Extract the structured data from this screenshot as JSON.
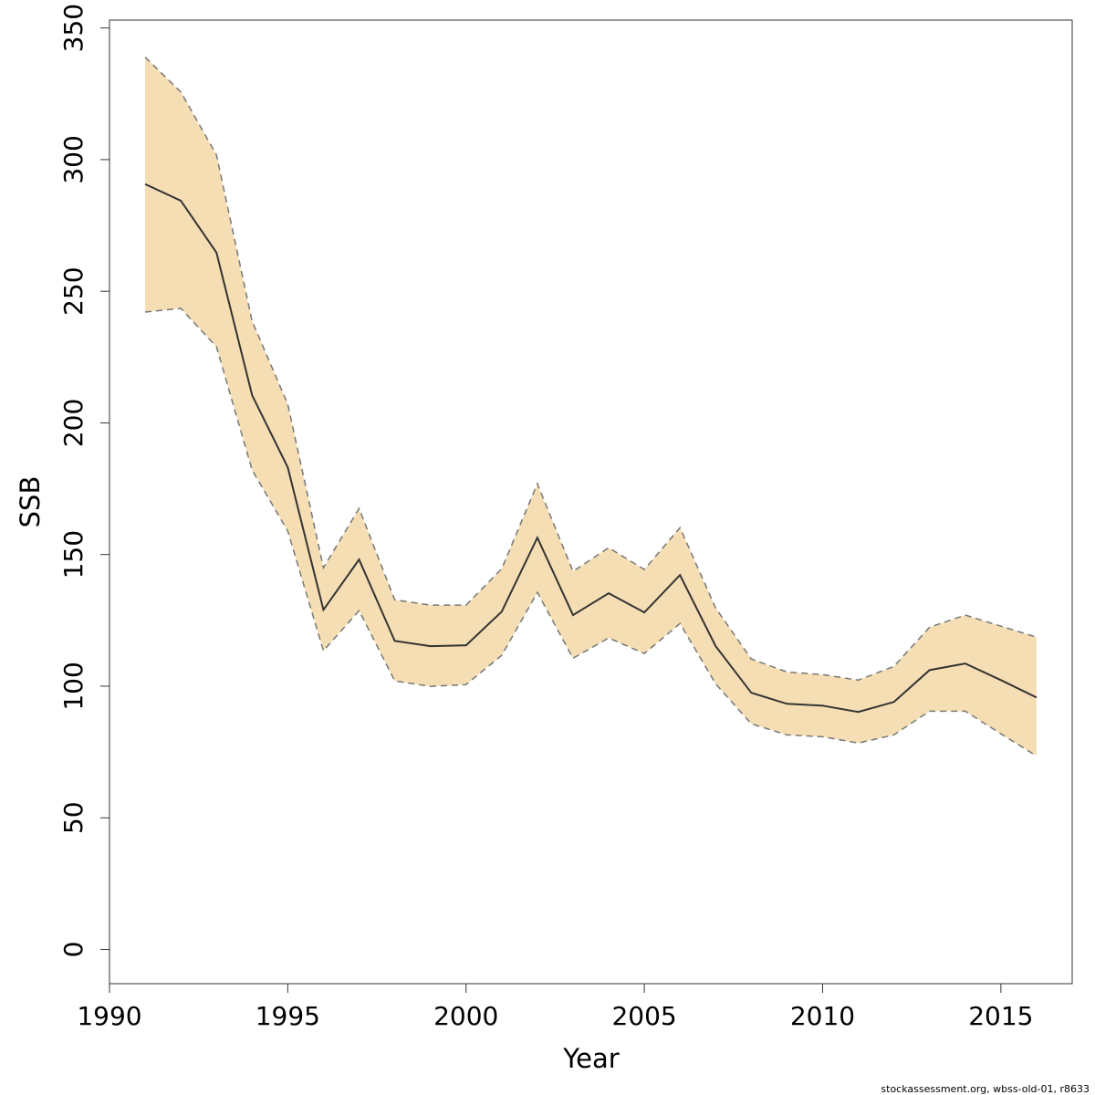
{
  "chart_data": {
    "type": "line",
    "xlabel": "Year",
    "ylabel": "SSB",
    "footer": "stockassessment.org, wbss-old-01, r8633",
    "x": [
      1991,
      1992,
      1993,
      1994,
      1995,
      1996,
      1997,
      1998,
      1999,
      2000,
      2001,
      2002,
      2003,
      2004,
      2005,
      2006,
      2007,
      2008,
      2009,
      2010,
      2011,
      2012,
      2013,
      2014,
      2015,
      2016
    ],
    "values": [
      290.7,
      284.4,
      264.7,
      210.5,
      183.1,
      129,
      148.1,
      117.2,
      115.2,
      115.5,
      128.3,
      156.4,
      127,
      135.3,
      128,
      142.2,
      115.2,
      97.5,
      93.3,
      92.6,
      90.2,
      94,
      106.1,
      108.6,
      102.3,
      95.7
    ],
    "upper": [
      338.9,
      325.7,
      301.8,
      238.6,
      207.1,
      145,
      167.5,
      132.8,
      130.8,
      130.8,
      144.6,
      176.9,
      143.6,
      152.6,
      144.3,
      160.2,
      129.7,
      110.3,
      105.4,
      104.4,
      102.3,
      107.5,
      122.4,
      127,
      122.8,
      118.6
    ],
    "lower": [
      242.1,
      243.5,
      228.9,
      182.1,
      158.9,
      113.4,
      128.7,
      102,
      99.9,
      100.6,
      111.7,
      135.6,
      110.6,
      118.3,
      112.4,
      123.8,
      100.9,
      85.7,
      81.5,
      80.8,
      78.4,
      81.5,
      90.5,
      90.5,
      81.9,
      73.5
    ],
    "color": "#333333",
    "band_color": "#f5deb3",
    "bound_color": "#777777",
    "xlim": [
      1990,
      2017
    ],
    "ylim": [
      -13,
      353
    ],
    "xticks": [
      1990,
      1995,
      2000,
      2005,
      2010,
      2015
    ],
    "yticks": [
      0,
      50,
      100,
      150,
      200,
      250,
      300,
      350
    ]
  }
}
